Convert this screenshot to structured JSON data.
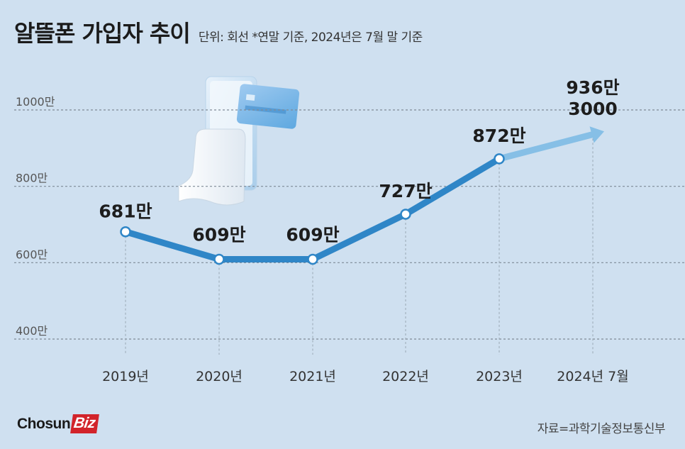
{
  "header": {
    "title": "알뜰폰 가입자 추이",
    "subtitle": "단위: 회선 *연말 기준, 2024년은 7월 말 기준"
  },
  "chart_data": {
    "type": "line",
    "title": "알뜰폰 가입자 추이",
    "unit_note": "단위: 회선 *연말 기준, 2024년은 7월 말 기준",
    "categories": [
      "2019년",
      "2020년",
      "2021년",
      "2022년",
      "2023년",
      "2024년 7월"
    ],
    "values": [
      6810000,
      6090000,
      6090000,
      7270000,
      8720000,
      9363000
    ],
    "data_labels": [
      "681만",
      "609만",
      "609만",
      "727만",
      "872만",
      "936만\n3000"
    ],
    "y_ticks": [
      {
        "value": 4000000,
        "label": "400만"
      },
      {
        "value": 6000000,
        "label": "600만"
      },
      {
        "value": 8000000,
        "label": "800만"
      },
      {
        "value": 10000000,
        "label": "1000만"
      }
    ],
    "ylim": [
      4000000,
      10000000
    ],
    "grid": true,
    "colors": {
      "line": "#2f86c7",
      "line_last": "#86bfe6",
      "grid": "#7f8a96",
      "marker_fill": "#ffffff"
    }
  },
  "footer": {
    "logo_main": "Chosun",
    "logo_accent": "Biz",
    "source": "자료=과학기술정보통신부"
  },
  "icons": {
    "illustration": "phone-receipt-card-icon"
  }
}
